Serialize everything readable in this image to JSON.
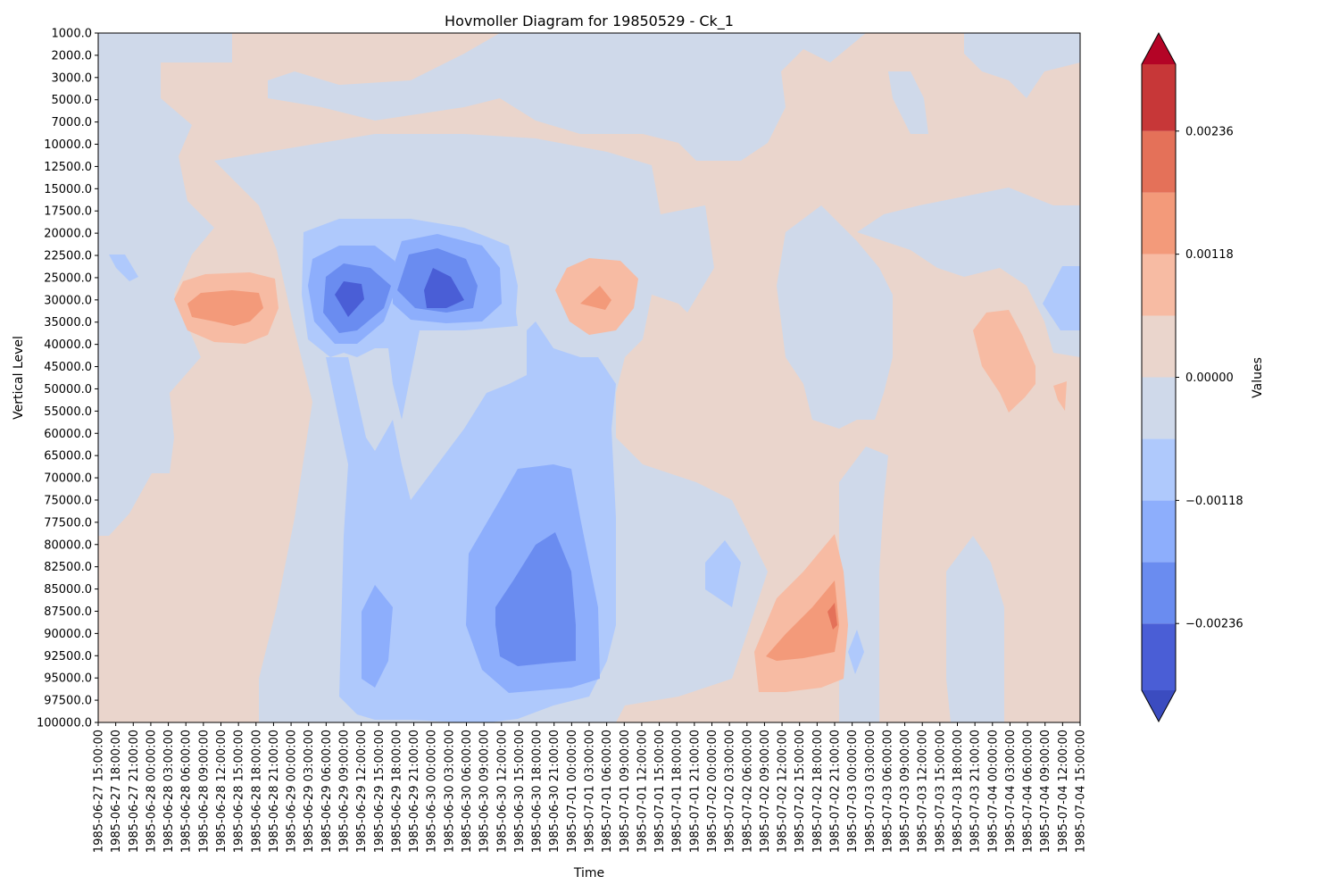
{
  "chart_data": {
    "type": "heatmap",
    "title": "Hovmoller Diagram for 19850529 - Ck_1",
    "xlabel": "Time",
    "ylabel": "Vertical Level",
    "colorbar_label": "Values",
    "y_ticks": [
      "1000.0",
      "2000.0",
      "3000.0",
      "5000.0",
      "7000.0",
      "10000.0",
      "12500.0",
      "15000.0",
      "17500.0",
      "20000.0",
      "22500.0",
      "25000.0",
      "30000.0",
      "35000.0",
      "40000.0",
      "45000.0",
      "50000.0",
      "55000.0",
      "60000.0",
      "65000.0",
      "70000.0",
      "75000.0",
      "77500.0",
      "80000.0",
      "82500.0",
      "85000.0",
      "87500.0",
      "90000.0",
      "92500.0",
      "95000.0",
      "97500.0",
      "100000.0"
    ],
    "x_ticks": [
      "1985-06-27 15:00:00",
      "1985-06-27 18:00:00",
      "1985-06-27 21:00:00",
      "1985-06-28 00:00:00",
      "1985-06-28 03:00:00",
      "1985-06-28 06:00:00",
      "1985-06-28 09:00:00",
      "1985-06-28 12:00:00",
      "1985-06-28 15:00:00",
      "1985-06-28 18:00:00",
      "1985-06-28 21:00:00",
      "1985-06-29 00:00:00",
      "1985-06-29 03:00:00",
      "1985-06-29 06:00:00",
      "1985-06-29 09:00:00",
      "1985-06-29 12:00:00",
      "1985-06-29 15:00:00",
      "1985-06-29 18:00:00",
      "1985-06-29 21:00:00",
      "1985-06-30 00:00:00",
      "1985-06-30 03:00:00",
      "1985-06-30 06:00:00",
      "1985-06-30 09:00:00",
      "1985-06-30 12:00:00",
      "1985-06-30 15:00:00",
      "1985-06-30 18:00:00",
      "1985-06-30 21:00:00",
      "1985-07-01 00:00:00",
      "1985-07-01 03:00:00",
      "1985-07-01 06:00:00",
      "1985-07-01 09:00:00",
      "1985-07-01 12:00:00",
      "1985-07-01 15:00:00",
      "1985-07-01 18:00:00",
      "1985-07-01 21:00:00",
      "1985-07-02 00:00:00",
      "1985-07-02 03:00:00",
      "1985-07-02 06:00:00",
      "1985-07-02 09:00:00",
      "1985-07-02 12:00:00",
      "1985-07-02 15:00:00",
      "1985-07-02 18:00:00",
      "1985-07-02 21:00:00",
      "1985-07-03 00:00:00",
      "1985-07-03 03:00:00",
      "1985-07-03 06:00:00",
      "1985-07-03 09:00:00",
      "1985-07-03 12:00:00",
      "1985-07-03 15:00:00",
      "1985-07-03 18:00:00",
      "1985-07-03 21:00:00",
      "1985-07-04 00:00:00",
      "1985-07-04 03:00:00",
      "1985-07-04 06:00:00",
      "1985-07-04 09:00:00",
      "1985-07-04 12:00:00",
      "1985-07-04 15:00:00"
    ],
    "colorbar": {
      "ticks": [
        {
          "value": 0.00236,
          "label": "0.00236"
        },
        {
          "value": 0.00118,
          "label": "0.00118"
        },
        {
          "value": 0.0,
          "label": "0.00000"
        },
        {
          "value": -0.00118,
          "label": "−0.00118"
        },
        {
          "value": -0.00236,
          "label": "−0.00236"
        }
      ],
      "levels": [
        -0.003,
        -0.00236,
        -0.00177,
        -0.00118,
        -0.00059,
        0.0,
        0.00059,
        0.00118,
        0.00177,
        0.00236,
        0.003
      ],
      "colors": [
        "#4a5ed6",
        "#6a8cf0",
        "#8daefc",
        "#afc9fc",
        "#cfd9ea",
        "#ead5cc",
        "#f7bba3",
        "#f39a7a",
        "#e47159",
        "#c73738"
      ],
      "under_color": "#3b4cc0",
      "over_color": "#b40426",
      "extend": "both"
    },
    "features": [
      {
        "sign": "negative",
        "level": 2,
        "t": "1985-06-29 09:00:00",
        "p": 30000.0
      },
      {
        "sign": "negative",
        "level": 2,
        "t": "1985-06-30 00:00:00",
        "p": 25000.0
      },
      {
        "sign": "negative",
        "level": 1,
        "t": "1985-06-30 18:00:00",
        "p": 90000.0
      },
      {
        "sign": "positive",
        "level": 2,
        "t": "1985-06-28 15:00:00",
        "p": 30000.0
      },
      {
        "sign": "positive",
        "level": 1,
        "t": "1985-07-01 03:00:00",
        "p": 30000.0
      },
      {
        "sign": "positive",
        "level": 3,
        "t": "1985-07-02 21:00:00",
        "p": 87500.0
      }
    ]
  }
}
